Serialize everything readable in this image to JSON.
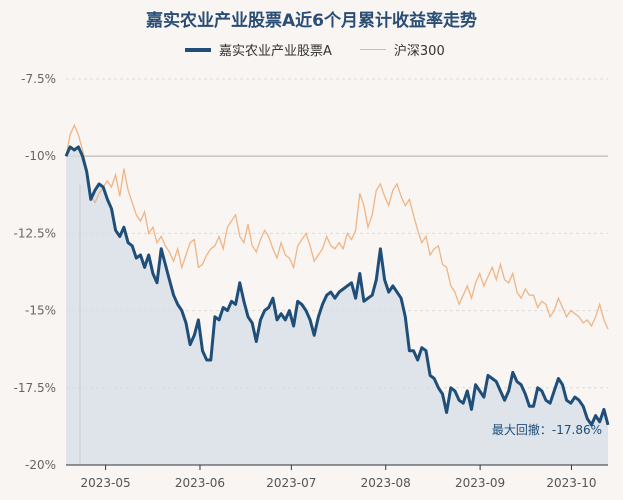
{
  "chart_data": {
    "type": "line",
    "title": "嘉实农业产业股票A近6个月累计收益率走势",
    "legend": {
      "placement": "top-center",
      "entries": [
        "嘉实农业产业股票A",
        "沪深300"
      ]
    },
    "ylim": [
      -20,
      -7.5
    ],
    "ytick_labels": [
      "-7.5%",
      "-10%",
      "-12.5%",
      "-15%",
      "-17.5%",
      "-20%"
    ],
    "ytick_values": [
      -7.5,
      -10,
      -12.5,
      -15,
      -17.5,
      -20
    ],
    "xtick_labels": [
      "2023-05",
      "2023-06",
      "2023-07",
      "2023-08",
      "2023-09",
      "2023-10"
    ],
    "x_range": [
      "2023-04-18",
      "2023-10-13"
    ],
    "grid": "horizontal",
    "colors": {
      "fund": "#1f4e79",
      "index": "#f0b585",
      "fill": "#d6dde5"
    },
    "series": [
      {
        "name": "嘉实农业产业股票A",
        "values": [
          -10.0,
          -9.7,
          -9.8,
          -9.7,
          -10.0,
          -10.5,
          -11.4,
          -11.1,
          -10.9,
          -11.0,
          -11.4,
          -11.7,
          -12.4,
          -12.6,
          -12.3,
          -12.8,
          -12.9,
          -13.3,
          -13.2,
          -13.6,
          -13.2,
          -13.8,
          -14.1,
          -13.0,
          -13.5,
          -14.0,
          -14.5,
          -14.8,
          -15.0,
          -15.4,
          -16.1,
          -15.8,
          -15.3,
          -16.3,
          -16.6,
          -16.6,
          -15.2,
          -15.3,
          -14.9,
          -15.0,
          -14.7,
          -14.8,
          -14.1,
          -14.7,
          -15.2,
          -15.4,
          -16.0,
          -15.3,
          -15.0,
          -14.9,
          -14.6,
          -15.3,
          -15.1,
          -15.3,
          -15.0,
          -15.5,
          -14.7,
          -14.8,
          -15.0,
          -15.3,
          -15.8,
          -15.2,
          -14.8,
          -14.5,
          -14.4,
          -14.6,
          -14.4,
          -14.3,
          -14.2,
          -14.1,
          -14.6,
          -13.8,
          -14.7,
          -14.6,
          -14.5,
          -14.0,
          -13.0,
          -14.0,
          -14.4,
          -14.2,
          -14.4,
          -14.6,
          -15.2,
          -16.3,
          -16.3,
          -16.6,
          -16.2,
          -16.3,
          -17.1,
          -17.2,
          -17.5,
          -17.7,
          -18.3,
          -17.5,
          -17.6,
          -17.9,
          -18.0,
          -17.6,
          -18.2,
          -17.4,
          -17.6,
          -17.8,
          -17.1,
          -17.2,
          -17.3,
          -17.6,
          -17.9,
          -17.6,
          -17.0,
          -17.3,
          -17.4,
          -17.7,
          -18.1,
          -18.1,
          -17.5,
          -17.6,
          -17.9,
          -18.0,
          -17.6,
          -17.2,
          -17.4,
          -17.9,
          -18.0,
          -17.8,
          -17.9,
          -18.1,
          -18.5,
          -18.7,
          -18.4,
          -18.6,
          -18.2,
          -18.7
        ],
        "max_drawdown_label": "最大回撤：-17.86%"
      },
      {
        "name": "沪深300",
        "values": [
          -10.0,
          -9.3,
          -9.0,
          -9.3,
          -9.8,
          -10.4,
          -11.3,
          -11.5,
          -11.2,
          -11.0,
          -10.8,
          -11.0,
          -10.6,
          -11.3,
          -10.4,
          -11.1,
          -11.5,
          -11.9,
          -12.1,
          -11.8,
          -12.5,
          -12.3,
          -12.8,
          -12.6,
          -12.9,
          -13.1,
          -13.4,
          -13.0,
          -13.6,
          -13.2,
          -12.8,
          -12.7,
          -13.6,
          -13.5,
          -13.2,
          -13.0,
          -12.9,
          -12.6,
          -13.0,
          -12.3,
          -12.1,
          -11.9,
          -12.6,
          -12.8,
          -12.2,
          -12.9,
          -13.1,
          -12.7,
          -12.4,
          -12.6,
          -13.0,
          -13.3,
          -12.8,
          -13.2,
          -13.3,
          -13.6,
          -12.9,
          -12.7,
          -12.5,
          -12.9,
          -13.4,
          -13.2,
          -13.0,
          -12.6,
          -12.9,
          -13.0,
          -12.8,
          -13.0,
          -12.5,
          -12.7,
          -12.4,
          -11.2,
          -11.6,
          -12.3,
          -11.9,
          -11.1,
          -10.9,
          -11.3,
          -11.6,
          -11.1,
          -10.9,
          -11.3,
          -11.6,
          -11.4,
          -11.9,
          -12.4,
          -12.8,
          -12.6,
          -13.2,
          -13.0,
          -12.9,
          -13.5,
          -13.6,
          -14.2,
          -14.4,
          -14.8,
          -14.5,
          -14.2,
          -14.6,
          -14.1,
          -13.8,
          -14.2,
          -13.9,
          -13.6,
          -14.0,
          -13.5,
          -14.0,
          -14.1,
          -13.8,
          -14.4,
          -14.6,
          -14.3,
          -14.5,
          -14.5,
          -14.9,
          -14.7,
          -14.8,
          -15.2,
          -15.0,
          -14.6,
          -14.9,
          -15.2,
          -15.0,
          -15.1,
          -15.2,
          -15.4,
          -15.3,
          -15.5,
          -15.2,
          -14.8,
          -15.3,
          -15.6
        ]
      }
    ]
  }
}
